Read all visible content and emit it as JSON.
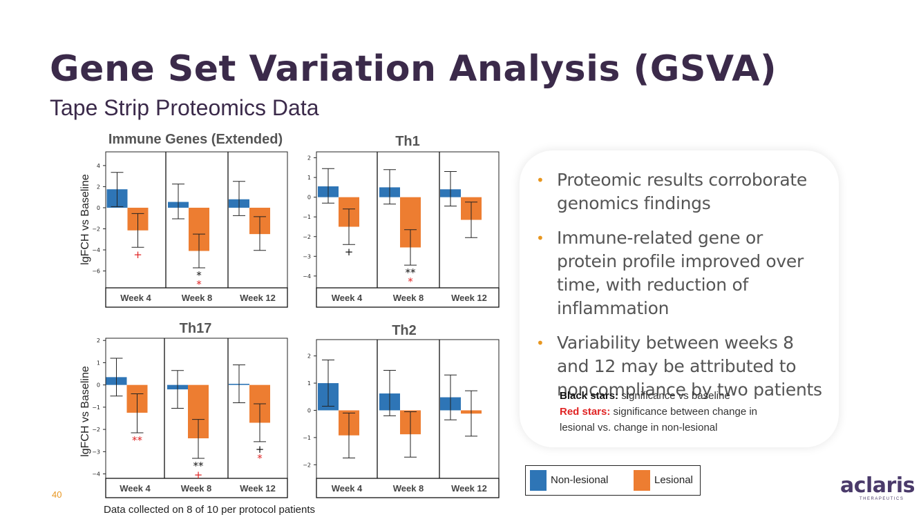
{
  "title": "Gene Set Variation Analysis (GSVA)",
  "subtitle": "Tape Strip Proteomics Data",
  "chart_data": [
    {
      "type": "bar",
      "title": "Immune Genes (Extended)",
      "ylabel": "lgFCH vs Baseline",
      "ylim": [
        -7.6,
        5.3
      ],
      "yticks": [
        4,
        2,
        0,
        -2,
        -4,
        -6
      ],
      "categories": [
        "Week 4",
        "Week 8",
        "Week 12"
      ],
      "series": [
        {
          "name": "Non-lesional",
          "values": [
            1.75,
            0.55,
            0.8
          ],
          "err_low": [
            0.1,
            -1.05,
            -0.75
          ],
          "err_high": [
            3.35,
            2.25,
            2.5
          ]
        },
        {
          "name": "Lesional",
          "values": [
            -2.15,
            -4.1,
            -2.5
          ],
          "err_low": [
            -3.75,
            -5.7,
            -4.05
          ],
          "err_high": [
            -0.55,
            -2.5,
            -0.85
          ]
        }
      ],
      "annotations": [
        {
          "category": 0,
          "series": "Lesional",
          "marks": [
            {
              "text": "+",
              "color": "red"
            }
          ]
        },
        {
          "category": 1,
          "series": "Lesional",
          "marks": [
            {
              "text": "*",
              "color": "black"
            },
            {
              "text": "*",
              "color": "red"
            }
          ]
        }
      ]
    },
    {
      "type": "bar",
      "title": "Th1",
      "ylabel": "",
      "ylim": [
        -4.6,
        2.3
      ],
      "yticks": [
        2,
        1,
        0,
        -1,
        -2,
        -3,
        -4
      ],
      "categories": [
        "Week 4",
        "Week 8",
        "Week 12"
      ],
      "series": [
        {
          "name": "Non-lesional",
          "values": [
            0.55,
            0.5,
            0.4
          ],
          "err_low": [
            -0.3,
            -0.35,
            -0.45
          ],
          "err_high": [
            1.45,
            1.4,
            1.3
          ]
        },
        {
          "name": "Lesional",
          "values": [
            -1.5,
            -2.55,
            -1.15
          ],
          "err_low": [
            -2.4,
            -3.45,
            -2.05
          ],
          "err_high": [
            -0.6,
            -1.65,
            -0.25
          ]
        }
      ],
      "annotations": [
        {
          "category": 0,
          "series": "Lesional",
          "marks": [
            {
              "text": "+",
              "color": "black"
            }
          ]
        },
        {
          "category": 1,
          "series": "Lesional",
          "marks": [
            {
              "text": "**",
              "color": "black"
            },
            {
              "text": "*",
              "color": "red"
            }
          ]
        }
      ]
    },
    {
      "type": "bar",
      "title": "Th17",
      "ylabel": "lgFCH vs Baseline",
      "ylim": [
        -4.2,
        2.1
      ],
      "yticks": [
        2,
        1,
        0,
        -1,
        -2,
        -3,
        -4
      ],
      "categories": [
        "Week 4",
        "Week 8",
        "Week 12"
      ],
      "series": [
        {
          "name": "Non-lesional",
          "values": [
            0.35,
            -0.2,
            0.05
          ],
          "err_low": [
            -0.5,
            -1.05,
            -0.8
          ],
          "err_high": [
            1.2,
            0.65,
            0.9
          ]
        },
        {
          "name": "Lesional",
          "values": [
            -1.25,
            -2.4,
            -1.7
          ],
          "err_low": [
            -2.15,
            -3.3,
            -2.55
          ],
          "err_high": [
            -0.4,
            -1.55,
            -0.85
          ]
        }
      ],
      "annotations": [
        {
          "category": 0,
          "series": "Lesional",
          "marks": [
            {
              "text": "**",
              "color": "red"
            }
          ]
        },
        {
          "category": 1,
          "series": "Lesional",
          "marks": [
            {
              "text": "**",
              "color": "black"
            },
            {
              "text": "+",
              "color": "red"
            }
          ]
        },
        {
          "category": 2,
          "series": "Lesional",
          "marks": [
            {
              "text": "+",
              "color": "black"
            },
            {
              "text": "*",
              "color": "red"
            }
          ]
        }
      ]
    },
    {
      "type": "bar",
      "title": "Th2",
      "ylabel": "",
      "ylim": [
        -2.5,
        2.6
      ],
      "yticks": [
        2,
        1,
        0,
        -1,
        -2
      ],
      "categories": [
        "Week 4",
        "Week 8",
        "Week 12"
      ],
      "series": [
        {
          "name": "Non-lesional",
          "values": [
            1.0,
            0.62,
            0.48
          ],
          "err_low": [
            0.15,
            -0.2,
            -0.35
          ],
          "err_high": [
            1.85,
            1.47,
            1.3
          ]
        },
        {
          "name": "Lesional",
          "values": [
            -0.92,
            -0.88,
            -0.12
          ],
          "err_low": [
            -1.75,
            -1.72,
            -0.95
          ],
          "err_high": [
            -0.1,
            -0.05,
            0.72
          ]
        }
      ],
      "annotations": []
    }
  ],
  "bullets": [
    "Proteomic results corroborate genomics findings",
    "Immune-related gene or protein profile improved over time, with reduction of inflammation",
    "Variability between weeks 8 and 12 may be attributed to noncompliance by two patients"
  ],
  "notes": {
    "black_label": "Black stars:",
    "black_text": "significance vs baseline",
    "red_label": "Red stars:",
    "red_text": "significance between change in",
    "red_text2": "lesional vs. change in non-lesional"
  },
  "legend": {
    "items": [
      {
        "label": "Non-lesional",
        "color": "#2e75b6"
      },
      {
        "label": "Lesional",
        "color": "#ed7d31"
      }
    ]
  },
  "footer": "Data collected on 8 of 10 per protocol patients",
  "page_number": "40",
  "logo": {
    "word": "aclaris",
    "sub": "THERAPEUTICS"
  },
  "colors": {
    "blue": "#2e75b6",
    "orange": "#ed7d31",
    "red_star": "#e02424",
    "title": "#3b2a4a",
    "accent": "#e8961f"
  }
}
